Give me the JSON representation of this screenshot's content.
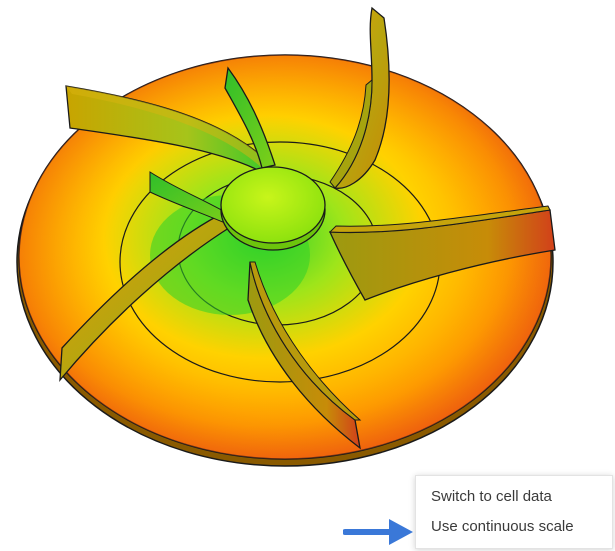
{
  "viewport": {
    "name": "3D impeller result view",
    "colors": {
      "high": "#d8321a",
      "mid": "#ffb300",
      "low": "#34d02a",
      "hub": "#b5f20a",
      "outline": "#1a1a1a"
    }
  },
  "context_menu": {
    "items": [
      {
        "label": "Switch to cell data"
      },
      {
        "label": "Use continuous scale"
      }
    ]
  },
  "annotation": {
    "icon": "arrow-right-icon",
    "color": "#3a78d8"
  }
}
